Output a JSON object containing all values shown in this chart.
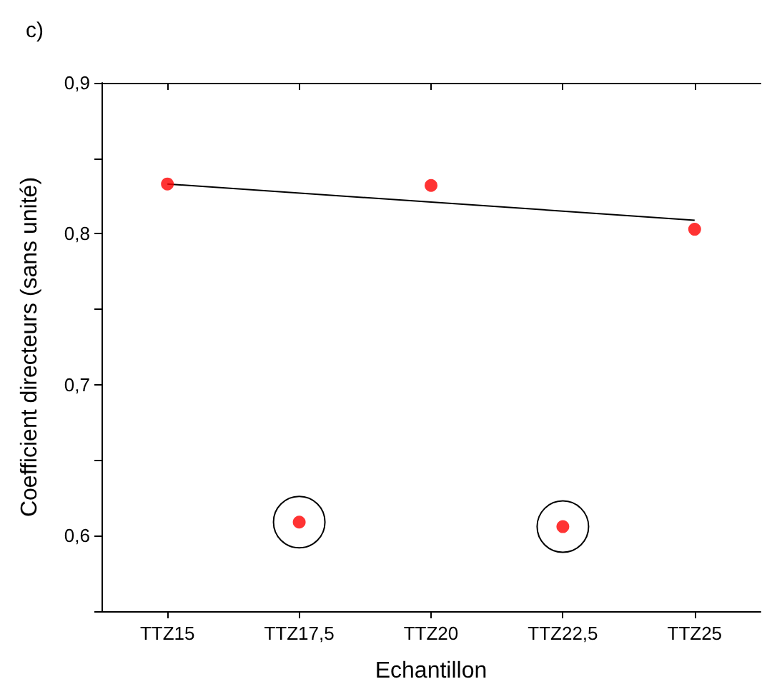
{
  "chart_data": {
    "type": "scatter",
    "xlabel": "Echantillon",
    "ylabel": "Coefficient directeurs (sans unité)",
    "annotations": [
      "c)"
    ],
    "categories": [
      "TTZ15",
      "TTZ17,5",
      "TTZ20",
      "TTZ22,5",
      "TTZ25"
    ],
    "series": [
      {
        "color": "#ff0000",
        "marker": "circle",
        "values": [
          0.833,
          0.609,
          0.832,
          0.606,
          0.803
        ]
      },
      {
        "type": "line",
        "color": "#000000",
        "marker": "none",
        "x": [
          "TTZ15",
          "TTZ25"
        ],
        "values": [
          0.833,
          0.809
        ]
      }
    ],
    "ylim": [
      0.55,
      0.9
    ],
    "yticks": [
      {
        "value": 0.55,
        "label": null
      },
      {
        "value": 0.6,
        "label": "0,6"
      },
      {
        "value": 0.65,
        "label": null
      },
      {
        "value": 0.7,
        "label": "0,7"
      },
      {
        "value": 0.75,
        "label": null
      },
      {
        "value": 0.8,
        "label": "0,8"
      },
      {
        "value": 0.85,
        "label": null
      },
      {
        "value": 0.9,
        "label": "0,9"
      }
    ],
    "grid": false
  }
}
